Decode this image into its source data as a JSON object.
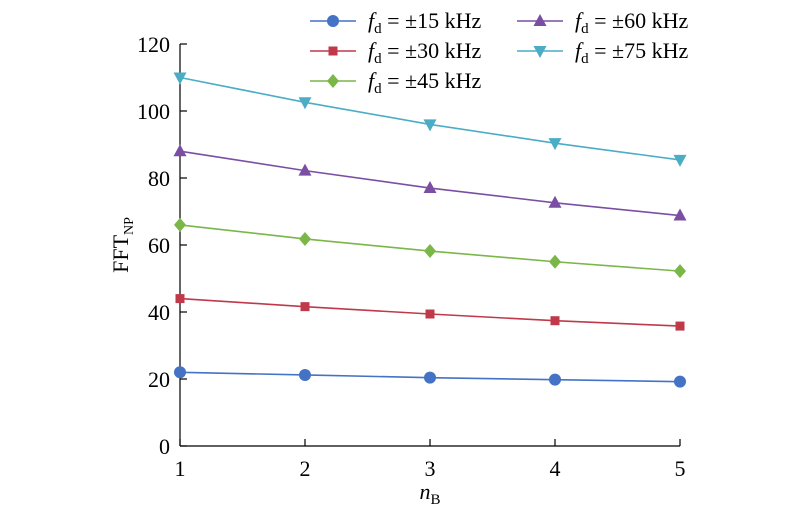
{
  "chart_data": {
    "type": "line",
    "xlabel": {
      "main": "n",
      "sub": "B"
    },
    "ylabel": {
      "main": "FFT",
      "sub": "NP"
    },
    "x": [
      1,
      2,
      3,
      4,
      5
    ],
    "xlim": [
      1,
      5
    ],
    "ylim": [
      0,
      120
    ],
    "xticks": [
      1,
      2,
      3,
      4,
      5
    ],
    "yticks": [
      0,
      20,
      40,
      60,
      80,
      100,
      120
    ],
    "grid": false,
    "legend_position": "top",
    "series": [
      {
        "name": "±15 kHz",
        "var_main": "f",
        "var_sub": "d",
        "eq": " = ",
        "color": "#4472c4",
        "marker": "circle",
        "values": [
          22.0,
          21.2,
          20.4,
          19.8,
          19.2
        ]
      },
      {
        "name": "±30 kHz",
        "var_main": "f",
        "var_sub": "d",
        "eq": " = ",
        "color": "#c0394b",
        "marker": "square",
        "values": [
          44.0,
          41.6,
          39.4,
          37.4,
          35.8
        ]
      },
      {
        "name": "±45 kHz",
        "var_main": "f",
        "var_sub": "d",
        "eq": " = ",
        "color": "#7ab648",
        "marker": "diamond",
        "values": [
          66.0,
          61.8,
          58.2,
          55.0,
          52.2
        ]
      },
      {
        "name": "±60 kHz",
        "var_main": "f",
        "var_sub": "d",
        "eq": " = ",
        "color": "#7a4fa3",
        "marker": "triangle-up",
        "values": [
          88.0,
          82.2,
          77.0,
          72.6,
          68.8
        ]
      },
      {
        "name": "±75 kHz",
        "var_main": "f",
        "var_sub": "d",
        "eq": " = ",
        "color": "#4bacc6",
        "marker": "triangle-down",
        "values": [
          110.0,
          102.6,
          96.0,
          90.4,
          85.4
        ]
      }
    ]
  }
}
